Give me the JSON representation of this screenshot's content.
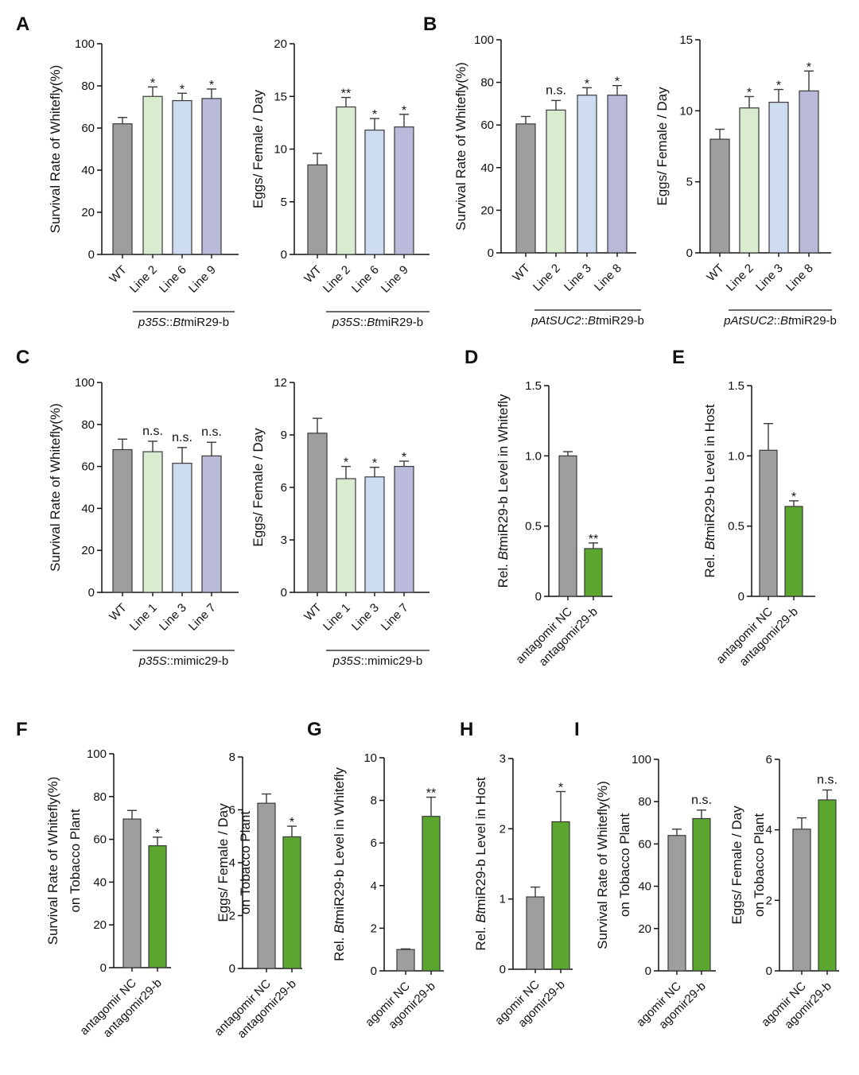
{
  "colors": {
    "wt": "#9e9e9e",
    "line_a": "#d9eccf",
    "line_b": "#cddcf0",
    "line_c": "#b9b9da",
    "treat": "#5aa62e",
    "edge": "#3a3a3a",
    "axis": "#111111"
  },
  "chart_data": [
    {
      "id": "A1",
      "type": "bar",
      "panel_letter": "A",
      "ylabel": "Survival Rate of Whitefly(%)",
      "ylim": [
        0,
        100
      ],
      "yticks": [
        "0",
        "20",
        "40",
        "60",
        "80",
        "100"
      ],
      "categories": [
        "WT",
        "Line 2",
        "Line 6",
        "Line 9"
      ],
      "values": [
        62,
        75,
        73,
        74
      ],
      "errors": [
        3,
        4.5,
        3.5,
        4.5
      ],
      "significance": [
        "",
        "*",
        "*",
        "*"
      ],
      "color_keys": [
        "wt",
        "line_a",
        "line_b",
        "line_c"
      ],
      "group_label_prefix": "p35S",
      "group_label_suffix": "::",
      "group_label_italic": "Bt",
      "group_label_rest": "miR29-b"
    },
    {
      "id": "A2",
      "type": "bar",
      "ylabel": "Eggs/ Female / Day",
      "ylim": [
        0,
        20
      ],
      "yticks": [
        "0",
        "5",
        "10",
        "15",
        "20"
      ],
      "categories": [
        "WT",
        "Line 2",
        "Line 6",
        "Line 9"
      ],
      "values": [
        8.5,
        14,
        11.8,
        12.1
      ],
      "errors": [
        1.1,
        0.9,
        1.1,
        1.2
      ],
      "significance": [
        "",
        "**",
        "*",
        "*"
      ],
      "color_keys": [
        "wt",
        "line_a",
        "line_b",
        "line_c"
      ],
      "group_label_prefix": "p35S",
      "group_label_suffix": "::",
      "group_label_italic": "Bt",
      "group_label_rest": "miR29-b"
    },
    {
      "id": "B1",
      "type": "bar",
      "panel_letter": "B",
      "ylabel": "Survival Rate of Whitefly(%)",
      "ylim": [
        0,
        100
      ],
      "yticks": [
        "0",
        "20",
        "40",
        "60",
        "80",
        "100"
      ],
      "categories": [
        "WT",
        "Line 2",
        "Line 3",
        "Line 8"
      ],
      "values": [
        60.5,
        67,
        74,
        74
      ],
      "errors": [
        3.5,
        4.5,
        3.5,
        4.5
      ],
      "significance": [
        "",
        "n.s.",
        "*",
        "*"
      ],
      "color_keys": [
        "wt",
        "line_a",
        "line_b",
        "line_c"
      ],
      "group_label_prefix": "pAtSUC2",
      "group_label_suffix": "::",
      "group_label_italic": "Bt",
      "group_label_rest": "miR29-b"
    },
    {
      "id": "B2",
      "type": "bar",
      "ylabel": "Eggs/ Female / Day",
      "ylim": [
        0,
        15
      ],
      "yticks": [
        "0",
        "5",
        "10",
        "15"
      ],
      "categories": [
        "WT",
        "Line 2",
        "Line 3",
        "Line 8"
      ],
      "values": [
        8,
        10.2,
        10.6,
        11.4
      ],
      "errors": [
        0.7,
        0.8,
        0.9,
        1.4
      ],
      "significance": [
        "",
        "*",
        "*",
        "*"
      ],
      "color_keys": [
        "wt",
        "line_a",
        "line_b",
        "line_c"
      ],
      "group_label_prefix": "pAtSUC2",
      "group_label_suffix": "::",
      "group_label_italic": "Bt",
      "group_label_rest": "miR29-b"
    },
    {
      "id": "C1",
      "type": "bar",
      "panel_letter": "C",
      "ylabel": "Survival Rate of Whitefly(%)",
      "ylim": [
        0,
        100
      ],
      "yticks": [
        "0",
        "20",
        "40",
        "60",
        "80",
        "100"
      ],
      "categories": [
        "WT",
        "Line 1",
        "Line 3",
        "Line 7"
      ],
      "values": [
        68,
        67,
        61.5,
        65
      ],
      "errors": [
        5,
        5,
        7.5,
        6.5
      ],
      "significance": [
        "",
        "n.s.",
        "n.s.",
        "n.s."
      ],
      "color_keys": [
        "wt",
        "line_a",
        "line_b",
        "line_c"
      ],
      "group_label_prefix": "p35S",
      "group_label_suffix": "::",
      "group_label_italic": "",
      "group_label_rest": "mimic29-b"
    },
    {
      "id": "C2",
      "type": "bar",
      "ylabel": "Eggs/ Female / Day",
      "ylim": [
        0,
        12
      ],
      "yticks": [
        "0",
        "3",
        "6",
        "9",
        "12"
      ],
      "categories": [
        "WT",
        "Line 1",
        "Line 3",
        "Line 7"
      ],
      "values": [
        9.1,
        6.5,
        6.6,
        7.2
      ],
      "errors": [
        0.85,
        0.7,
        0.55,
        0.3
      ],
      "significance": [
        "",
        "*",
        "*",
        "*"
      ],
      "color_keys": [
        "wt",
        "line_a",
        "line_b",
        "line_c"
      ],
      "group_label_prefix": "p35S",
      "group_label_suffix": "::",
      "group_label_italic": "",
      "group_label_rest": "mimic29-b"
    },
    {
      "id": "D",
      "type": "bar",
      "panel_letter": "D",
      "ylabel_prefix": "Rel. ",
      "ylabel_italic": "Bt",
      "ylabel_rest": "miR29-b Level in Whitefly",
      "ylim": [
        0,
        1.5
      ],
      "yticks": [
        "0",
        "0.5",
        "1.0",
        "1.5"
      ],
      "categories": [
        "antagomir NC",
        "antagomir29-b"
      ],
      "values": [
        1.0,
        0.34
      ],
      "errors": [
        0.03,
        0.04
      ],
      "significance": [
        "",
        "**"
      ],
      "color_keys": [
        "wt",
        "treat"
      ]
    },
    {
      "id": "E",
      "type": "bar",
      "panel_letter": "E",
      "ylabel_prefix": "Rel. ",
      "ylabel_italic": "Bt",
      "ylabel_rest": "miR29-b Level in Host",
      "ylim": [
        0,
        1.5
      ],
      "yticks": [
        "0",
        "0.5",
        "1.0",
        "1.5"
      ],
      "categories": [
        "antagomir NC",
        "antagomir29-b"
      ],
      "values": [
        1.04,
        0.64
      ],
      "errors": [
        0.19,
        0.04
      ],
      "significance": [
        "",
        "*"
      ],
      "color_keys": [
        "wt",
        "treat"
      ]
    },
    {
      "id": "F1",
      "type": "bar",
      "panel_letter": "F",
      "ylabel": "Survival Rate of Whitefly(%)",
      "ylabel_line2": "on Tobacco Plant",
      "ylim": [
        0,
        100
      ],
      "yticks": [
        "0",
        "20",
        "40",
        "60",
        "80",
        "100"
      ],
      "categories": [
        "antagomir NC",
        "antagomir29-b"
      ],
      "values": [
        69.5,
        57
      ],
      "errors": [
        4,
        4
      ],
      "significance": [
        "",
        "*"
      ],
      "color_keys": [
        "wt",
        "treat"
      ]
    },
    {
      "id": "F2",
      "type": "bar",
      "ylabel": "Eggs/ Female / Day",
      "ylabel_line2": "on Tobacco Plant",
      "ylim": [
        0,
        8
      ],
      "yticks": [
        "0",
        "2",
        "4",
        "6",
        "8"
      ],
      "categories": [
        "antagomir NC",
        "antagomir29-b"
      ],
      "values": [
        6.25,
        4.98
      ],
      "errors": [
        0.35,
        0.4
      ],
      "significance": [
        "",
        "*"
      ],
      "color_keys": [
        "wt",
        "treat"
      ]
    },
    {
      "id": "G",
      "type": "bar",
      "panel_letter": "G",
      "ylabel_prefix": "Rel. ",
      "ylabel_italic": "Bt",
      "ylabel_rest": "miR29-b Level in Whitefly",
      "ylim": [
        0,
        10
      ],
      "yticks": [
        "0",
        "2",
        "4",
        "6",
        "8",
        "10"
      ],
      "categories": [
        "agomir NC",
        "agomir29-b"
      ],
      "values": [
        1.0,
        7.25
      ],
      "errors": [
        0.03,
        0.9
      ],
      "significance": [
        "",
        "**"
      ],
      "color_keys": [
        "wt",
        "treat"
      ]
    },
    {
      "id": "H",
      "type": "bar",
      "panel_letter": "H",
      "ylabel_prefix": "Rel. ",
      "ylabel_italic": "Bt",
      "ylabel_rest": "miR29-b Level in Host",
      "ylim": [
        0,
        3
      ],
      "yticks": [
        "0",
        "1",
        "2",
        "3"
      ],
      "categories": [
        "agomir NC",
        "agomir29-b"
      ],
      "values": [
        1.03,
        2.1
      ],
      "errors": [
        0.14,
        0.43
      ],
      "significance": [
        "",
        "*"
      ],
      "color_keys": [
        "wt",
        "treat"
      ]
    },
    {
      "id": "I1",
      "type": "bar",
      "panel_letter": "I",
      "ylabel": "Survival Rate of Whitefly(%)",
      "ylabel_line2": "on Tobacco Plant",
      "ylim": [
        0,
        100
      ],
      "yticks": [
        "0",
        "20",
        "40",
        "60",
        "80",
        "100"
      ],
      "categories": [
        "agomir NC",
        "agomir29-b"
      ],
      "values": [
        64,
        72
      ],
      "errors": [
        3,
        4
      ],
      "significance": [
        "",
        "n.s."
      ],
      "color_keys": [
        "wt",
        "treat"
      ]
    },
    {
      "id": "I2",
      "type": "bar",
      "ylabel": "Eggs/ Female / Day",
      "ylabel_line2": "on Tobacco Plant",
      "ylim": [
        0,
        6
      ],
      "yticks": [
        "0",
        "2",
        "4",
        "6"
      ],
      "categories": [
        "agomir NC",
        "agomir29-b"
      ],
      "values": [
        4.02,
        4.85
      ],
      "errors": [
        0.32,
        0.28
      ],
      "significance": [
        "",
        "n.s."
      ],
      "color_keys": [
        "wt",
        "treat"
      ]
    }
  ]
}
